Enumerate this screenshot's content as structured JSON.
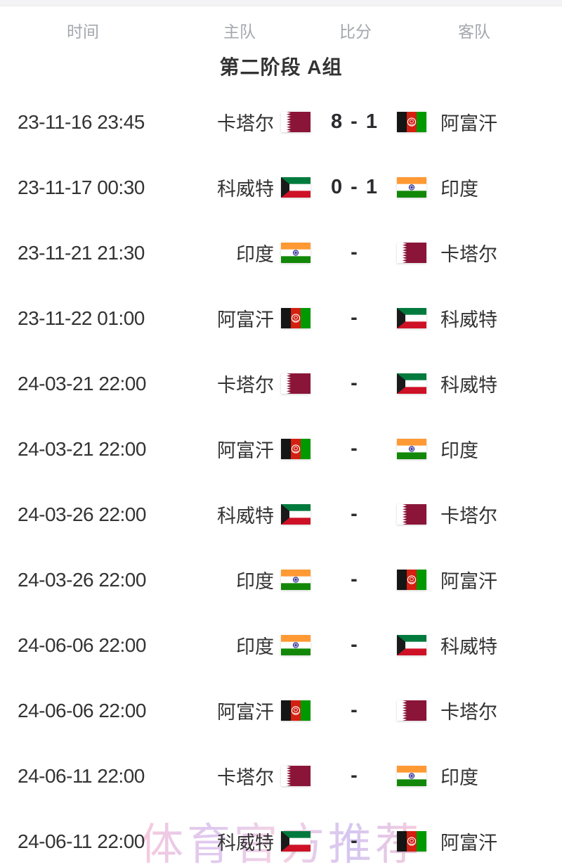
{
  "table": {
    "headers": {
      "time": "时间",
      "home": "主队",
      "score": "比分",
      "away": "客队"
    },
    "group_title": "第二阶段 A组"
  },
  "teams": {
    "QAT": {
      "name": "卡塔尔",
      "flag_icon": "qatar-flag-icon"
    },
    "AFG": {
      "name": "阿富汗",
      "flag_icon": "afghanistan-flag-icon"
    },
    "KUW": {
      "name": "科威特",
      "flag_icon": "kuwait-flag-icon"
    },
    "IND": {
      "name": "印度",
      "flag_icon": "india-flag-icon"
    }
  },
  "flag_colors": {
    "QAT": {
      "maroon": "#8A1538",
      "white": "#ffffff"
    },
    "AFG": {
      "black": "#151515",
      "red": "#D32011",
      "green": "#009900",
      "emblem": "#ffffff"
    },
    "KUW": {
      "green": "#007A3D",
      "white": "#ffffff",
      "red": "#CE1126",
      "black": "#1a1a1a"
    },
    "IND": {
      "saffron": "#FF9933",
      "white": "#ffffff",
      "green": "#138808",
      "navy": "#000080"
    }
  },
  "matches": [
    {
      "time": "23-11-16 23:45",
      "home": "QAT",
      "away": "AFG",
      "score": "8 - 1"
    },
    {
      "time": "23-11-17 00:30",
      "home": "KUW",
      "away": "IND",
      "score": "0 - 1"
    },
    {
      "time": "23-11-21 21:30",
      "home": "IND",
      "away": "QAT",
      "score": "-"
    },
    {
      "time": "23-11-22 01:00",
      "home": "AFG",
      "away": "KUW",
      "score": "-"
    },
    {
      "time": "24-03-21 22:00",
      "home": "QAT",
      "away": "KUW",
      "score": "-"
    },
    {
      "time": "24-03-21 22:00",
      "home": "AFG",
      "away": "IND",
      "score": "-"
    },
    {
      "time": "24-03-26 22:00",
      "home": "KUW",
      "away": "QAT",
      "score": "-"
    },
    {
      "time": "24-03-26 22:00",
      "home": "IND",
      "away": "AFG",
      "score": "-"
    },
    {
      "time": "24-06-06 22:00",
      "home": "IND",
      "away": "KUW",
      "score": "-"
    },
    {
      "time": "24-06-06 22:00",
      "home": "AFG",
      "away": "QAT",
      "score": "-"
    },
    {
      "time": "24-06-11 22:00",
      "home": "QAT",
      "away": "IND",
      "score": "-"
    },
    {
      "time": "24-06-11 22:00",
      "home": "KUW",
      "away": "AFG",
      "score": "-"
    }
  ],
  "watermark": {
    "text": "体育官方推荐"
  }
}
